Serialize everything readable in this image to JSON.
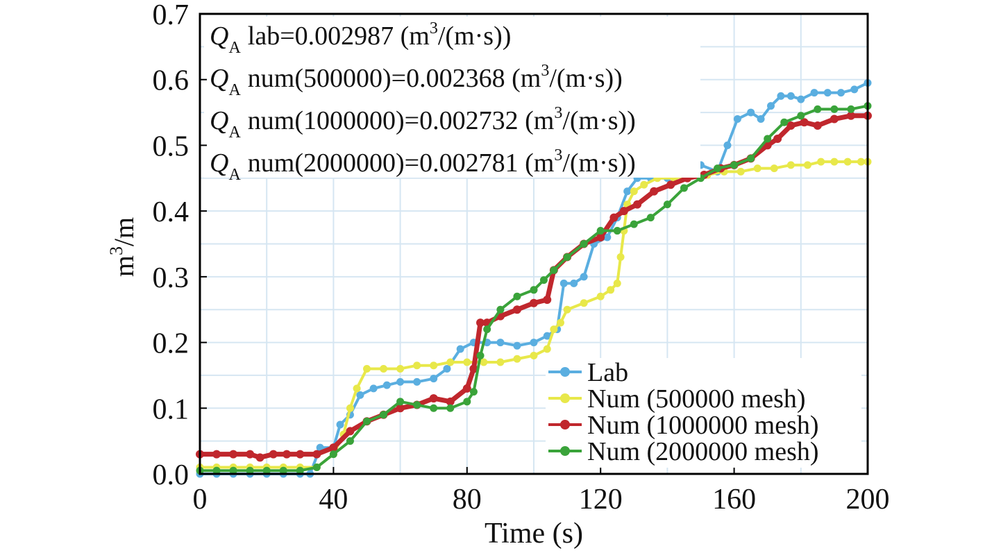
{
  "chart_data": {
    "type": "line",
    "xlabel": "Time (s)",
    "ylabel_base": "m",
    "ylabel_sup": "3",
    "ylabel_tail": "/m",
    "xlim": [
      0,
      200
    ],
    "ylim": [
      0,
      0.7
    ],
    "x_ticks": [
      0,
      40,
      80,
      120,
      160,
      200
    ],
    "y_ticks": [
      "0.0",
      "0.1",
      "0.2",
      "0.3",
      "0.4",
      "0.5",
      "0.6",
      "0.7"
    ],
    "x_tick_labels": [
      "0",
      "40",
      "80",
      "120",
      "160",
      "200"
    ],
    "grid": true,
    "legend_position": "bottom-right",
    "annotations": [
      {
        "q": "Q",
        "sub": "A",
        "text": "lab=0.002987 (m",
        "sup": "3",
        "tail": "/(m·s))"
      },
      {
        "q": "Q",
        "sub": "A",
        "text": "num(500000)=0.002368 (m",
        "sup": "3",
        "tail": "/(m·s))"
      },
      {
        "q": "Q",
        "sub": "A",
        "text": "num(1000000)=0.002732 (m",
        "sup": "3",
        "tail": "/(m·s))"
      },
      {
        "q": "Q",
        "sub": "A",
        "text": "num(2000000)=0.002781 (m",
        "sup": "3",
        "tail": "/(m·s))"
      }
    ],
    "series": [
      {
        "name": "Lab",
        "color": "#5aaee0",
        "x": [
          0,
          5,
          10,
          15,
          20,
          25,
          30,
          33,
          36,
          40,
          42,
          45,
          48,
          52,
          56,
          60,
          65,
          70,
          74,
          78,
          82,
          86,
          90,
          95,
          100,
          104,
          107,
          109,
          112,
          115,
          118,
          122,
          125,
          128,
          131,
          135,
          140,
          145,
          150,
          155,
          158,
          161,
          165,
          168,
          171,
          174,
          177,
          180,
          184,
          188,
          192,
          196,
          200
        ],
        "y": [
          0.0,
          0.0,
          0.0,
          0.0,
          0.0,
          0.0,
          0.0,
          0.0,
          0.04,
          0.04,
          0.075,
          0.09,
          0.12,
          0.13,
          0.135,
          0.14,
          0.14,
          0.145,
          0.16,
          0.19,
          0.2,
          0.2,
          0.2,
          0.195,
          0.2,
          0.21,
          0.22,
          0.29,
          0.29,
          0.3,
          0.35,
          0.36,
          0.39,
          0.43,
          0.45,
          0.45,
          0.45,
          0.46,
          0.47,
          0.46,
          0.5,
          0.54,
          0.55,
          0.54,
          0.56,
          0.575,
          0.575,
          0.57,
          0.58,
          0.58,
          0.58,
          0.585,
          0.595
        ]
      },
      {
        "name": "Num (500000 mesh)",
        "color": "#e8e84a",
        "x": [
          0,
          5,
          10,
          15,
          20,
          25,
          30,
          35,
          40,
          43,
          45,
          47,
          50,
          55,
          60,
          65,
          70,
          75,
          80,
          85,
          90,
          95,
          100,
          104,
          106,
          108,
          110,
          115,
          120,
          123,
          125,
          126,
          127,
          128,
          130,
          133,
          137,
          142,
          147,
          152,
          157,
          162,
          167,
          172,
          177,
          182,
          186,
          190,
          194,
          198,
          200
        ],
        "y": [
          0.01,
          0.01,
          0.01,
          0.01,
          0.01,
          0.01,
          0.01,
          0.01,
          0.03,
          0.06,
          0.1,
          0.13,
          0.16,
          0.16,
          0.16,
          0.165,
          0.165,
          0.17,
          0.17,
          0.17,
          0.17,
          0.175,
          0.18,
          0.19,
          0.22,
          0.23,
          0.25,
          0.26,
          0.27,
          0.28,
          0.29,
          0.33,
          0.37,
          0.41,
          0.43,
          0.44,
          0.45,
          0.45,
          0.455,
          0.455,
          0.46,
          0.46,
          0.465,
          0.465,
          0.47,
          0.47,
          0.475,
          0.475,
          0.475,
          0.475,
          0.475
        ]
      },
      {
        "name": "Num (1000000 mesh)",
        "color": "#c0272d",
        "x": [
          0,
          5,
          10,
          15,
          18,
          22,
          26,
          30,
          35,
          40,
          45,
          50,
          55,
          60,
          65,
          70,
          75,
          80,
          82,
          84,
          86,
          90,
          95,
          100,
          104,
          106,
          110,
          115,
          120,
          124,
          127,
          131,
          136,
          141,
          146,
          151,
          156,
          160,
          165,
          170,
          173,
          177,
          181,
          185,
          190,
          195,
          200
        ],
        "y": [
          0.03,
          0.03,
          0.03,
          0.03,
          0.025,
          0.03,
          0.03,
          0.03,
          0.03,
          0.04,
          0.065,
          0.08,
          0.09,
          0.1,
          0.105,
          0.115,
          0.11,
          0.13,
          0.16,
          0.23,
          0.23,
          0.24,
          0.25,
          0.26,
          0.265,
          0.31,
          0.33,
          0.35,
          0.36,
          0.39,
          0.4,
          0.41,
          0.43,
          0.44,
          0.45,
          0.455,
          0.465,
          0.47,
          0.48,
          0.5,
          0.51,
          0.53,
          0.535,
          0.53,
          0.54,
          0.545,
          0.545
        ]
      },
      {
        "name": "Num (2000000 mesh)",
        "color": "#3aa33a",
        "x": [
          0,
          5,
          10,
          15,
          20,
          25,
          30,
          35,
          40,
          45,
          50,
          55,
          60,
          65,
          70,
          75,
          80,
          82,
          84,
          86,
          90,
          95,
          100,
          103,
          106,
          110,
          115,
          120,
          125,
          130,
          135,
          140,
          145,
          150,
          155,
          160,
          165,
          170,
          175,
          180,
          185,
          190,
          195,
          200
        ],
        "y": [
          0.005,
          0.005,
          0.005,
          0.005,
          0.005,
          0.005,
          0.005,
          0.01,
          0.03,
          0.05,
          0.08,
          0.09,
          0.11,
          0.105,
          0.1,
          0.1,
          0.11,
          0.125,
          0.18,
          0.22,
          0.25,
          0.27,
          0.28,
          0.295,
          0.31,
          0.33,
          0.35,
          0.37,
          0.37,
          0.38,
          0.39,
          0.41,
          0.435,
          0.45,
          0.465,
          0.47,
          0.48,
          0.51,
          0.535,
          0.545,
          0.555,
          0.555,
          0.555,
          0.56
        ]
      }
    ]
  }
}
